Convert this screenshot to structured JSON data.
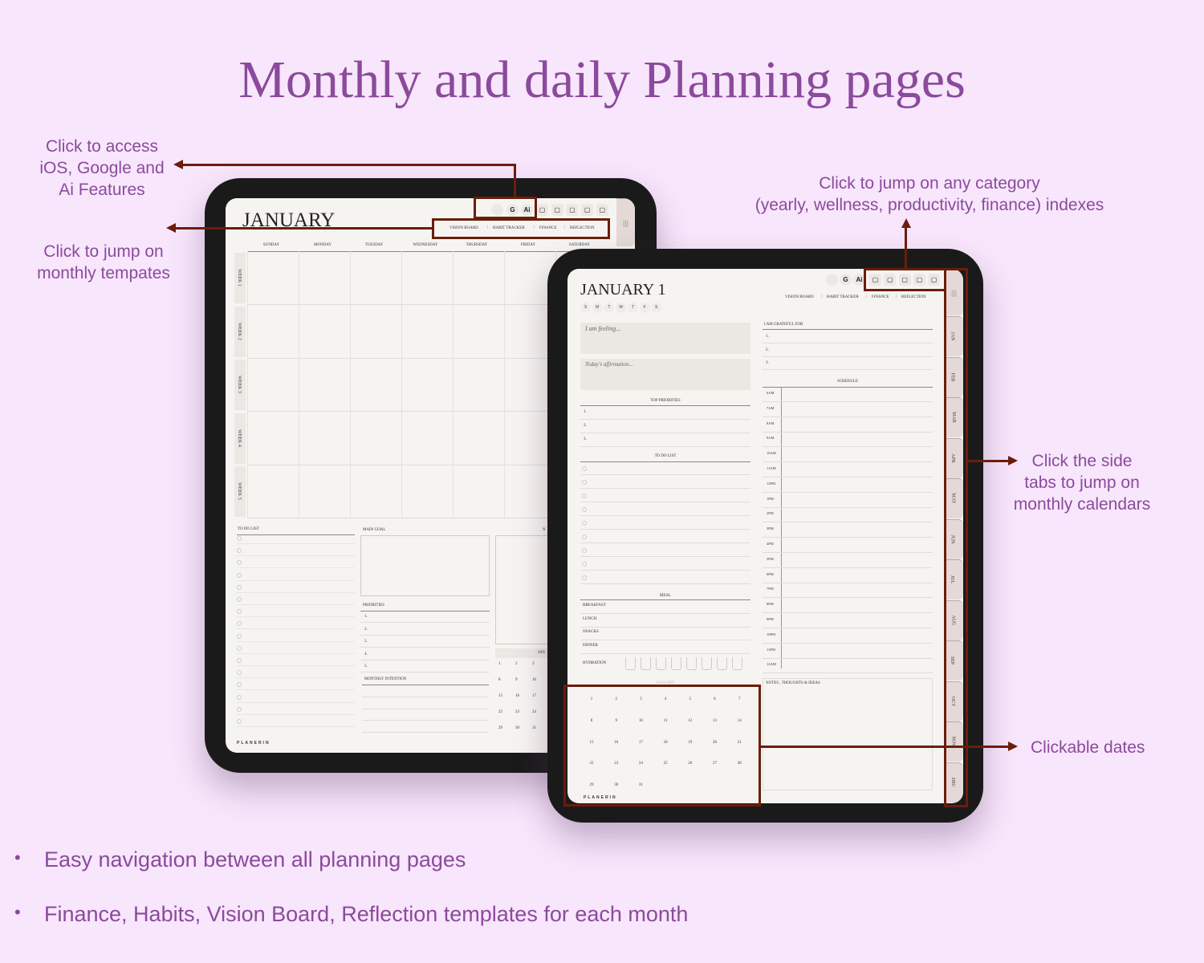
{
  "title": "Monthly and daily Planning pages",
  "annotations": {
    "features": [
      "Click to access",
      "iOS, Google and",
      "Ai Features"
    ],
    "monthly": [
      "Click to jump on",
      "monthly tempates"
    ],
    "category": [
      "Click to jump on any category",
      "(yearly, wellness, productivity, finance) indexes"
    ],
    "tabs": [
      "Click the side",
      "tabs to jump on",
      "monthly calendars"
    ],
    "dates": "Clickable dates",
    "accent_color": "#6b1d0b"
  },
  "bullets": [
    "Easy navigation between all planning pages",
    "Finance, Habits, Vision Board, Reflection templates for each month"
  ],
  "nav_links": [
    "VISION BOARD",
    "HABIT TRACKER",
    "FINANCE",
    "REFLECTION"
  ],
  "feature_icons": [
    {
      "name": "apple-icon",
      "glyph": ""
    },
    {
      "name": "google-icon",
      "glyph": "G"
    },
    {
      "name": "ai-icon",
      "glyph": "Ai"
    }
  ],
  "category_icons": [
    "calendar-icon",
    "wellness-icon",
    "finance-icon",
    "productivity-icon",
    "notebook-icon"
  ],
  "monthly_page": {
    "title": "JANUARY",
    "weekdays": [
      "SUNDAY",
      "MONDAY",
      "TUESDAY",
      "WEDNESDAY",
      "THURSDAY",
      "FRIDAY",
      "SATURDAY"
    ],
    "weeks": [
      "WEEK 1",
      "WEEK 2",
      "WEEK 3",
      "WEEK 4",
      "WEEK 5"
    ],
    "todo_label": "TO DO LIST",
    "main_goal_label": "MAIN GOAL",
    "priorities_label": "PRIORITIES",
    "priorities": [
      "1.",
      "2.",
      "3.",
      "4.",
      "5."
    ],
    "intention_label": "MONTHLY INTENTION",
    "notes_label": "N",
    "mini_cal_label": "JAN",
    "mini_dates": [
      [
        1,
        2,
        3
      ],
      [
        8,
        9,
        10
      ],
      [
        15,
        16,
        17
      ],
      [
        22,
        23,
        24
      ],
      [
        29,
        30,
        31
      ]
    ],
    "brand": "PLANERIN"
  },
  "daily_page": {
    "title": "JANUARY 1",
    "weekday_letters": [
      "S",
      "M",
      "T",
      "W",
      "T",
      "F",
      "S"
    ],
    "feeling": "I am feeling...",
    "affirmation": "Today's affirmation...",
    "top_priorities_label": "TOP PRIORITIES",
    "top_priorities": [
      "1.",
      "2.",
      "3."
    ],
    "todo_label": "TO DO LIST",
    "meal_label": "MEAL",
    "meals": [
      "BREAKFAST",
      "LUNCH",
      "SNACKS",
      "DINNER"
    ],
    "hydration_label": "HYDRATION",
    "hydration_cups": 8,
    "grateful_label": "I AM GRATEFUL FOR",
    "grateful": [
      "1.",
      "2.",
      "3."
    ],
    "schedule_label": "SCHEDULE",
    "times": [
      "6AM",
      "7AM",
      "8AM",
      "9AM",
      "10AM",
      "11AM",
      "12PM",
      "1PM",
      "2PM",
      "3PM",
      "4PM",
      "5PM",
      "6PM",
      "7PM",
      "8PM",
      "9PM",
      "10PM",
      "11PM",
      "12AM"
    ],
    "notes_label": "NOTES , THOUGHTS & IDEAS",
    "calendar_label": "JANUARY",
    "dates": [
      1,
      2,
      3,
      4,
      5,
      6,
      7,
      8,
      9,
      10,
      11,
      12,
      13,
      14,
      15,
      16,
      17,
      18,
      19,
      20,
      21,
      22,
      23,
      24,
      25,
      26,
      27,
      28,
      29,
      30,
      31
    ],
    "brand": "PLANERIN",
    "month_tabs": [
      "JAN",
      "FEB",
      "MAR",
      "APR",
      "MAY",
      "JUN",
      "JUL",
      "AUG",
      "SEP",
      "OCT",
      "NOV",
      "DEC"
    ]
  }
}
